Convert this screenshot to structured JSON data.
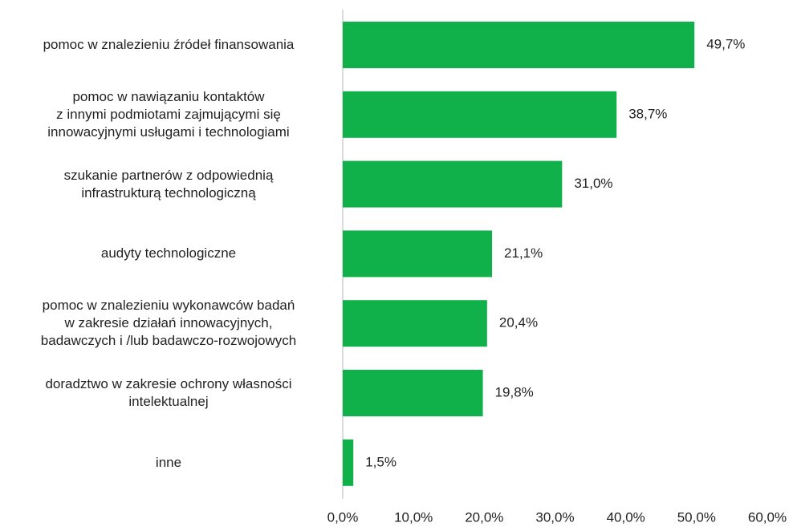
{
  "chart_data": {
    "type": "hbar",
    "categories": [
      "pomoc w znalezieniu źródeł finansowania",
      "pomoc w nawiązaniu kontaktów\nz innymi podmiotami zajmującymi się\ninnowacyjnymi usługami i technologiami",
      "szukanie partnerów z odpowiednią\ninfrastrukturą technologiczną",
      "audyty technologiczne",
      "pomoc w znalezieniu wykonawców badań\nw zakresie działań innowacyjnych,\nbadawczych i /lub badawczo-rozwojowych",
      "doradztwo w zakresie ochrony własności\nintelektualnej",
      "inne"
    ],
    "values": [
      49.7,
      38.7,
      31.0,
      21.1,
      20.4,
      19.8,
      1.5
    ],
    "value_labels": [
      "49,7%",
      "38,7%",
      "31,0%",
      "21,1%",
      "20,4%",
      "19,8%",
      "1,5%"
    ],
    "color": "#10b04a",
    "xlim": [
      0,
      60
    ],
    "xticks": [
      {
        "value": 0,
        "label": "0,0%"
      },
      {
        "value": 10,
        "label": "10,0%"
      },
      {
        "value": 20,
        "label": "20,0%"
      },
      {
        "value": 30,
        "label": "30,0%"
      },
      {
        "value": 40,
        "label": "40,0%"
      },
      {
        "value": 50,
        "label": "50,0%"
      },
      {
        "value": 60,
        "label": "60,0%"
      }
    ],
    "grid": false
  }
}
